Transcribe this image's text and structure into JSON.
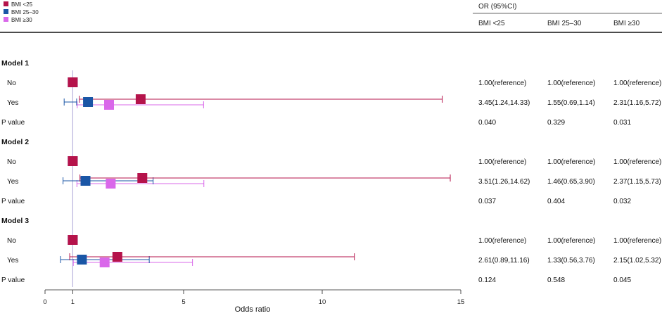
{
  "legend": [
    {
      "label": "BMI <25",
      "color": "#b5134b"
    },
    {
      "label": "BMI 25–30",
      "color": "#1a56a6"
    },
    {
      "label": "BMI ≥30",
      "color": "#d968ea"
    }
  ],
  "table_header": {
    "title": "OR (95%CI)",
    "columns": [
      "BMI <25",
      "BMI 25–30",
      "BMI ≥30"
    ]
  },
  "axis": {
    "title": "Odds ratio",
    "ticks": [
      "0",
      "1",
      "5",
      "10",
      "15"
    ],
    "reference_line": 1
  },
  "chart_data": {
    "type": "forest",
    "xlabel": "Odds ratio",
    "xlim": [
      0,
      15
    ],
    "reference_line": 1,
    "series": [
      {
        "name": "BMI <25",
        "color": "#b5134b"
      },
      {
        "name": "BMI 25–30",
        "color": "#1a56a6"
      },
      {
        "name": "BMI ≥30",
        "color": "#d968ea"
      }
    ],
    "models": [
      {
        "name": "Model 1",
        "rows": [
          {
            "label": "No",
            "or": [
              1.0,
              1.0,
              1.0
            ],
            "ci": [
              null,
              null,
              null
            ],
            "text": [
              "1.00(reference)",
              "1.00(reference)",
              "1.00(reference)"
            ]
          },
          {
            "label": "Yes",
            "or": [
              3.45,
              1.55,
              2.31
            ],
            "ci": [
              [
                1.24,
                14.33
              ],
              [
                0.69,
                1.14
              ],
              [
                1.16,
                5.72
              ]
            ],
            "text": [
              "3.45(1.24,14.33)",
              "1.55(0.69,1.14)",
              "2.31(1.16,5.72)"
            ]
          },
          {
            "label": "P value",
            "text": [
              "0.040",
              "0.329",
              "0.031"
            ]
          }
        ]
      },
      {
        "name": "Model 2",
        "rows": [
          {
            "label": "No",
            "or": [
              1.0,
              1.0,
              1.0
            ],
            "ci": [
              null,
              null,
              null
            ],
            "text": [
              "1.00(reference)",
              "1.00(reference)",
              "1.00(reference)"
            ]
          },
          {
            "label": "Yes",
            "or": [
              3.51,
              1.46,
              2.37
            ],
            "ci": [
              [
                1.26,
                14.62
              ],
              [
                0.65,
                3.9
              ],
              [
                1.15,
                5.73
              ]
            ],
            "text": [
              "3.51(1.26,14.62)",
              "1.46(0.65,3.90)",
              "2.37(1.15,5.73)"
            ]
          },
          {
            "label": "P value",
            "text": [
              "0.037",
              "0.404",
              "0.032"
            ]
          }
        ]
      },
      {
        "name": "Model 3",
        "rows": [
          {
            "label": "No",
            "or": [
              1.0,
              1.0,
              1.0
            ],
            "ci": [
              null,
              null,
              null
            ],
            "text": [
              "1.00(reference)",
              "1.00(reference)",
              "1.00(reference)"
            ]
          },
          {
            "label": "Yes",
            "or": [
              2.61,
              1.33,
              2.15
            ],
            "ci": [
              [
                0.89,
                11.16
              ],
              [
                0.56,
                3.76
              ],
              [
                1.02,
                5.32
              ]
            ],
            "text": [
              "2.61(0.89,11.16)",
              "1.33(0.56,3.76)",
              "2.15(1.02,5.32)"
            ]
          },
          {
            "label": "P value",
            "text": [
              "0.124",
              "0.548",
              "0.045"
            ]
          }
        ]
      }
    ]
  }
}
